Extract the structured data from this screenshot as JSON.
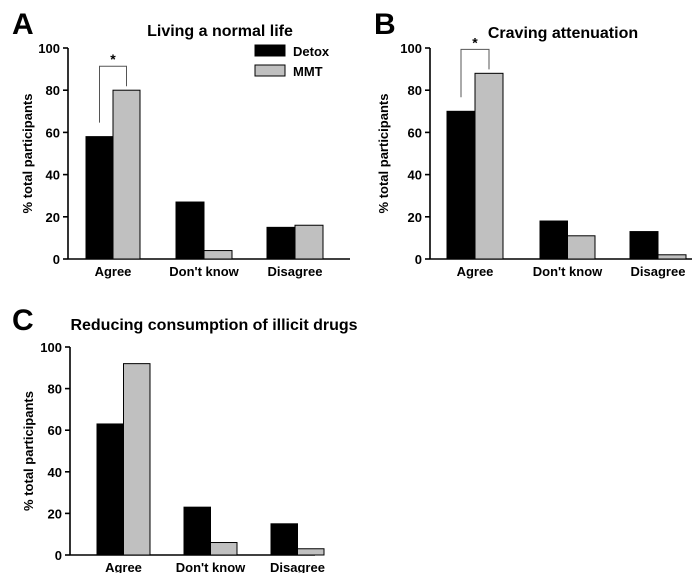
{
  "colors": {
    "Detox": "#000000",
    "MMT": "#c0c0c0"
  },
  "legend": {
    "labels": [
      "Detox",
      "MMT"
    ],
    "placement": "top-right of panel A"
  },
  "chart_data": [
    {
      "panel": "A",
      "type": "bar",
      "title": "Living a normal life",
      "ylabel": "% total participants",
      "xlabel": "",
      "ylim": [
        0,
        100
      ],
      "yticks": [
        0,
        20,
        40,
        60,
        80,
        100
      ],
      "categories": [
        "Agree",
        "Don't know",
        "Disagree"
      ],
      "series": [
        {
          "name": "Detox",
          "values": [
            58,
            27,
            15
          ]
        },
        {
          "name": "MMT",
          "values": [
            80,
            4,
            16
          ]
        }
      ],
      "significance": {
        "category": "Agree",
        "label": "*"
      },
      "grid": false
    },
    {
      "panel": "B",
      "type": "bar",
      "title": "Craving attenuation",
      "ylabel": "% total participants",
      "xlabel": "",
      "ylim": [
        0,
        100
      ],
      "yticks": [
        0,
        20,
        40,
        60,
        80,
        100
      ],
      "categories": [
        "Agree",
        "Don't know",
        "Disagree"
      ],
      "series": [
        {
          "name": "Detox",
          "values": [
            70,
            18,
            13
          ]
        },
        {
          "name": "MMT",
          "values": [
            88,
            11,
            2
          ]
        }
      ],
      "significance": {
        "category": "Agree",
        "label": "*"
      },
      "grid": false
    },
    {
      "panel": "C",
      "type": "bar",
      "title": "Reducing consumption of illicit drugs",
      "ylabel": "% total participants",
      "xlabel": "",
      "ylim": [
        0,
        100
      ],
      "yticks": [
        0,
        20,
        40,
        60,
        80,
        100
      ],
      "categories": [
        "Agree",
        "Don't know",
        "Disagree"
      ],
      "series": [
        {
          "name": "Detox",
          "values": [
            63,
            23,
            15
          ]
        },
        {
          "name": "MMT",
          "values": [
            92,
            6,
            3
          ]
        }
      ],
      "significance": null,
      "grid": false
    }
  ]
}
